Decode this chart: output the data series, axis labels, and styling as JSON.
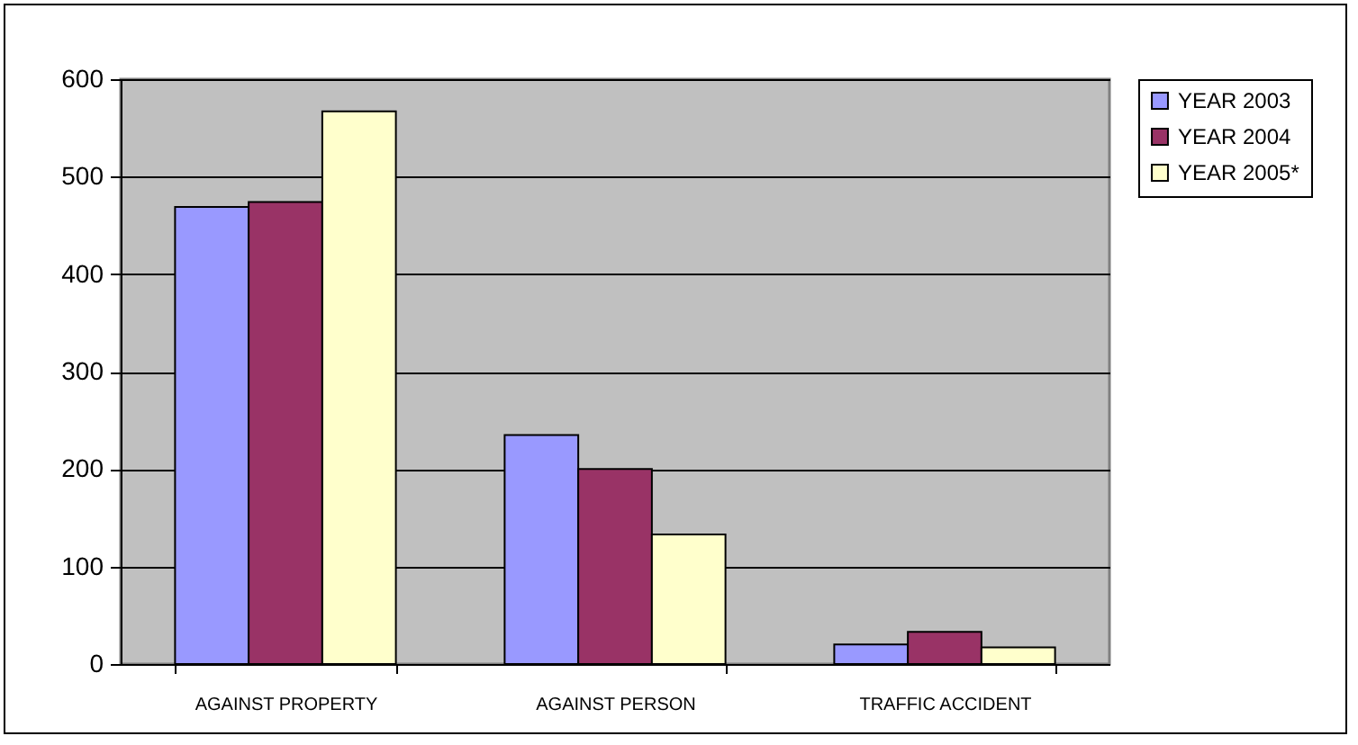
{
  "chart_data": {
    "type": "bar",
    "categories": [
      "AGAINST PROPERTY",
      "AGAINST PERSON",
      "TRAFFIC ACCIDENT"
    ],
    "series": [
      {
        "name": "YEAR 2003",
        "color": "#9999ff",
        "values": [
          469,
          235,
          20
        ]
      },
      {
        "name": "YEAR 2004",
        "color": "#993366",
        "values": [
          474,
          200,
          33
        ]
      },
      {
        "name": "YEAR 2005*",
        "color": "#ffffcc",
        "values": [
          567,
          133,
          17
        ]
      }
    ],
    "ylim": [
      0,
      600
    ],
    "yticks": [
      0,
      100,
      200,
      300,
      400,
      500,
      600
    ],
    "grid": "y",
    "legend": "right"
  }
}
